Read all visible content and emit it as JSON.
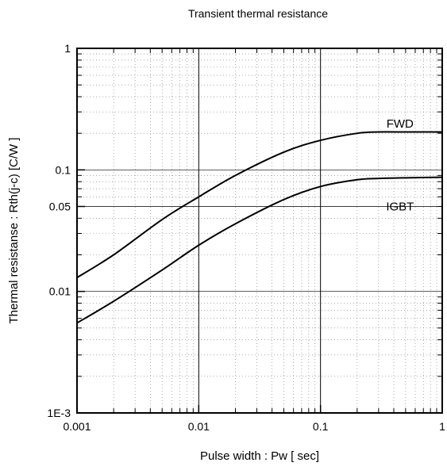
{
  "chart_data": {
    "type": "line",
    "title": "Transient thermal resistance",
    "xlabel": "Pulse width :  Pw [ sec]",
    "ylabel": "Thermal resistanse :  Rth(j-c)  [C/W ]",
    "x_scale": "log",
    "y_scale": "log",
    "xlim": [
      0.001,
      1
    ],
    "ylim": [
      0.001,
      1
    ],
    "grid": true,
    "x_ticks": [
      {
        "value": 0.001,
        "label": "0.001"
      },
      {
        "value": 0.01,
        "label": "0.01"
      },
      {
        "value": 0.1,
        "label": "0.1"
      },
      {
        "value": 1,
        "label": "1"
      }
    ],
    "y_ticks": [
      {
        "value": 0.001,
        "label": "1E-3"
      },
      {
        "value": 0.01,
        "label": "0.01"
      },
      {
        "value": 0.05,
        "label": "0.05"
      },
      {
        "value": 0.1,
        "label": "0.1"
      },
      {
        "value": 1,
        "label": "1"
      }
    ],
    "series": [
      {
        "name": "FWD",
        "x": [
          0.001,
          0.002,
          0.005,
          0.01,
          0.02,
          0.05,
          0.1,
          0.2,
          0.3,
          0.5,
          1
        ],
        "y": [
          0.013,
          0.02,
          0.039,
          0.06,
          0.09,
          0.14,
          0.175,
          0.2,
          0.205,
          0.205,
          0.205
        ]
      },
      {
        "name": "IGBT",
        "x": [
          0.001,
          0.002,
          0.005,
          0.01,
          0.02,
          0.05,
          0.1,
          0.2,
          0.3,
          0.5,
          1
        ],
        "y": [
          0.0055,
          0.0083,
          0.015,
          0.024,
          0.036,
          0.057,
          0.073,
          0.083,
          0.085,
          0.086,
          0.087
        ]
      }
    ],
    "series_label_positions": [
      {
        "series": "FWD",
        "x": 0.45,
        "y": 0.24
      },
      {
        "series": "IGBT",
        "x": 0.45,
        "y": 0.05
      }
    ]
  }
}
